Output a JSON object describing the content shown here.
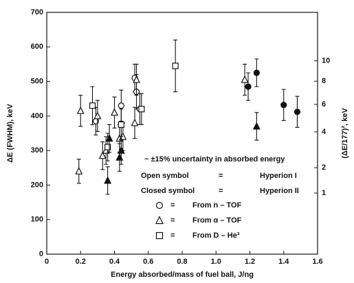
{
  "chart_data": {
    "type": "scatter",
    "xlabel": "Energy absorbed/mass of fuel ball, J/ng",
    "ylabel": "ΔE (FWHM), keV",
    "y2label": "(ΔE/177)², keV",
    "xlim": [
      0,
      1.6
    ],
    "xticks": [
      0,
      0.2,
      0.4,
      0.6,
      0.8,
      {
        "value": 1,
        "label": "1.0"
      },
      1.2,
      1.4,
      1.6
    ],
    "ylim": [
      0,
      700
    ],
    "yticks": [
      0,
      100,
      200,
      300,
      400,
      500,
      600,
      700
    ],
    "y2lim": [
      0,
      15.64
    ],
    "y2scale": "sqrt",
    "y2ticks": [
      1,
      2,
      4,
      6,
      8,
      10
    ],
    "color": "#111111",
    "series": [
      {
        "marker": "circle",
        "filled": false,
        "x": [
          0.29,
          0.44,
          0.52,
          0.53,
          0.55
        ],
        "values": [
          385,
          430,
          510,
          470,
          420
        ],
        "errors": [
          40,
          45,
          40,
          50,
          45
        ]
      },
      {
        "marker": "triangle",
        "filled": false,
        "x": [
          0.19,
          0.2,
          0.3,
          0.33,
          0.35,
          0.4,
          0.43,
          0.45,
          0.52,
          0.53,
          1.17
        ],
        "values": [
          240,
          415,
          400,
          285,
          300,
          410,
          335,
          340,
          380,
          505,
          505
        ],
        "errors": [
          35,
          45,
          45,
          40,
          40,
          45,
          40,
          40,
          45,
          45,
          45
        ]
      },
      {
        "marker": "square",
        "filled": false,
        "x": [
          0.27,
          0.36,
          0.44,
          0.56,
          0.76
        ],
        "values": [
          430,
          310,
          375,
          420,
          545
        ],
        "errors": [
          55,
          40,
          45,
          45,
          75
        ]
      },
      {
        "marker": "circle",
        "filled": true,
        "x": [
          1.19,
          1.24,
          1.4,
          1.48
        ],
        "values": [
          485,
          525,
          432,
          412
        ],
        "errors": [
          40,
          40,
          45,
          45
        ]
      },
      {
        "marker": "triangle",
        "filled": true,
        "x": [
          0.36,
          0.37,
          0.43,
          0.44,
          1.24
        ],
        "values": [
          213,
          335,
          280,
          300,
          370
        ],
        "errors": [
          40,
          40,
          40,
          40,
          40
        ]
      }
    ],
    "annotations": [
      "~ ±15% uncertainty in absorbed energy",
      "Open symbol",
      "=",
      "Hyperion I",
      "Closed symbol",
      "=",
      "Hyperion II"
    ],
    "legend": [
      {
        "marker": "circle",
        "sign": "=",
        "label": "From n – TOF"
      },
      {
        "marker": "triangle",
        "sign": "=",
        "label": "From α – TOF"
      },
      {
        "marker": "square",
        "sign": "=",
        "label": "From D – He³"
      }
    ]
  }
}
